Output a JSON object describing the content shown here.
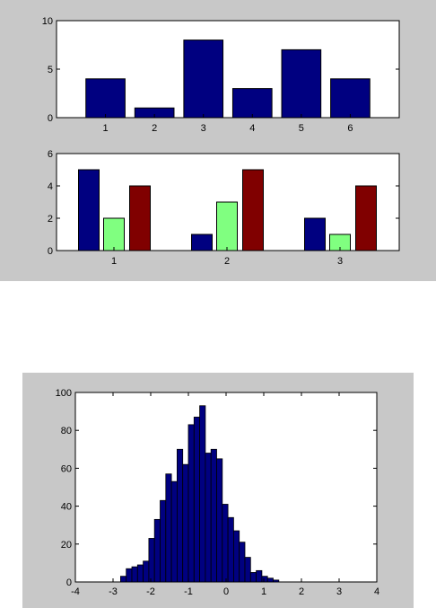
{
  "colors": {
    "figure_background": "#c8c8c8",
    "axes_background": "#ffffff",
    "bar_edge": "#000000",
    "navy": "#000080",
    "light_green": "#80ff80",
    "maroon": "#800000"
  },
  "chart_data": [
    {
      "type": "bar",
      "title": "",
      "xlabel": "",
      "ylabel": "",
      "categories": [
        "1",
        "2",
        "3",
        "4",
        "5",
        "6"
      ],
      "values": [
        4,
        1,
        8,
        3,
        7,
        4
      ],
      "ylim": [
        0,
        10
      ],
      "xlim": [
        0,
        7
      ],
      "yticks": [
        "0",
        "5",
        "10"
      ],
      "grid": false,
      "color": "#000080"
    },
    {
      "type": "bar",
      "title": "",
      "xlabel": "",
      "ylabel": "",
      "categories": [
        "1",
        "2",
        "3"
      ],
      "series": [
        {
          "values": [
            5,
            1,
            2
          ],
          "color": "#000080"
        },
        {
          "values": [
            2,
            3,
            1
          ],
          "color": "#80ff80"
        },
        {
          "values": [
            4,
            5,
            4
          ],
          "color": "#800000"
        }
      ],
      "ylim": [
        0,
        6
      ],
      "yticks": [
        "0",
        "2",
        "4",
        "6"
      ],
      "grid": false
    },
    {
      "type": "bar",
      "subtype": "histogram",
      "title": "",
      "xlabel": "",
      "ylabel": "",
      "bin_start": -2.8,
      "bin_width": 0.15,
      "counts": [
        3,
        7,
        8,
        9,
        11,
        23,
        33,
        43,
        57,
        53,
        70,
        62,
        83,
        87,
        93,
        68,
        70,
        65,
        41,
        34,
        27,
        21,
        13,
        5,
        6,
        3,
        2,
        1
      ],
      "xlim": [
        -4,
        4
      ],
      "ylim": [
        0,
        100
      ],
      "xticks": [
        "-4",
        "-3",
        "-2",
        "-1",
        "0",
        "1",
        "2",
        "3",
        "4"
      ],
      "yticks": [
        "0",
        "20",
        "40",
        "60",
        "80",
        "100"
      ],
      "grid": false,
      "color": "#000080"
    }
  ]
}
